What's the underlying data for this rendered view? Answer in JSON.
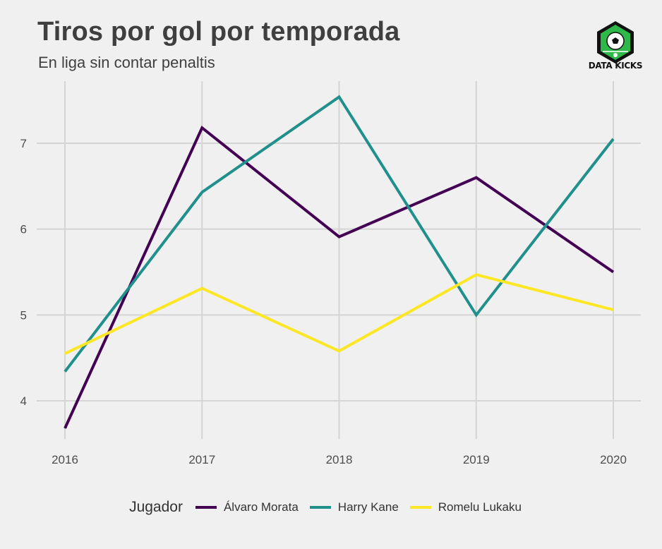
{
  "header": {
    "title": "Tiros por gol por temporada",
    "subtitle": "En liga sin contar penaltis"
  },
  "logo": {
    "text": "DATA KICKS",
    "icon": "soccer-ball-icon",
    "colors": {
      "hex": "#111111",
      "field": "#2eb84a"
    }
  },
  "legend": {
    "title": "Jugador"
  },
  "chart_data": {
    "type": "line",
    "title": "Tiros por gol por temporada",
    "subtitle": "En liga sin contar penaltis",
    "xlabel": "",
    "ylabel": "",
    "x": [
      2016,
      2017,
      2018,
      2019,
      2020
    ],
    "x_tick_labels": [
      "2016",
      "2017",
      "2018",
      "2019",
      "2020"
    ],
    "y_ticks": [
      4,
      5,
      6,
      7
    ],
    "y_tick_labels": [
      "4",
      "5",
      "6",
      "7"
    ],
    "ylim": [
      3.55,
      7.75
    ],
    "grid": true,
    "legend_position": "bottom",
    "series": [
      {
        "name": "Álvaro Morata",
        "color": "#440154",
        "values": [
          3.68,
          7.18,
          5.91,
          6.6,
          5.5
        ]
      },
      {
        "name": "Harry Kane",
        "color": "#21908c",
        "values": [
          4.34,
          6.43,
          7.54,
          5.0,
          7.05
        ]
      },
      {
        "name": "Romelu Lukaku",
        "color": "#fde725",
        "values": [
          4.55,
          5.31,
          4.58,
          5.47,
          5.06
        ]
      }
    ]
  }
}
